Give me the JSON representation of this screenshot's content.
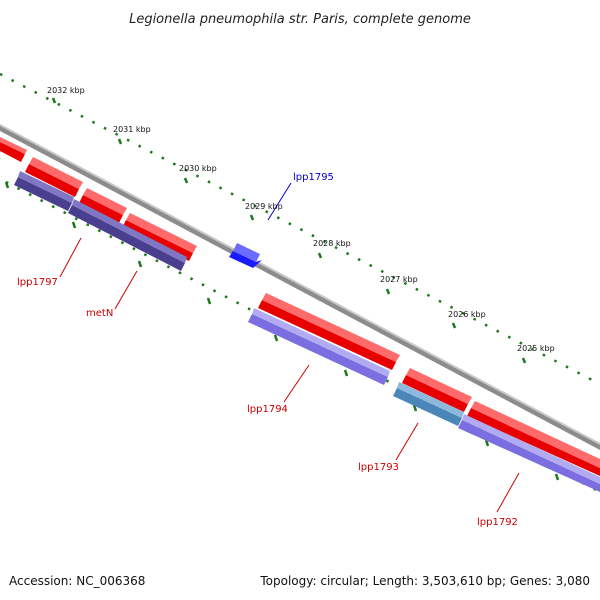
{
  "title": "Legionella pneumophila str. Paris, complete genome",
  "accession": "Accession: NC_006368",
  "summary": "Topology: circular; Length: 3,503,610 bp; Genes: 3,080",
  "colors": {
    "backbone": "#8c8c8c",
    "forward_cds": "#ff1a1a",
    "reverse_cds": "#7a6ee0",
    "reverse_cds_dark": "#4a3f8f",
    "reverse_cds_teal": "#4a86b8",
    "highlight": "#1a1aff",
    "tick": "#1a7a1a",
    "label_red": "#cc0000",
    "label_blue": "#0000cc"
  },
  "ticks": [
    {
      "label": "2032 kbp"
    },
    {
      "label": "2031 kbp"
    },
    {
      "label": "2030 kbp"
    },
    {
      "label": "2029 kbp"
    },
    {
      "label": "2028 kbp"
    },
    {
      "label": "2027 kbp"
    },
    {
      "label": "2026 kbp"
    },
    {
      "label": "2025 kbp"
    }
  ],
  "gene_labels": [
    {
      "name": "lpp1795",
      "color_key": "label_blue"
    },
    {
      "name": "lpp1797",
      "color_key": "label_red"
    },
    {
      "name": "metN",
      "color_key": "label_red"
    },
    {
      "name": "lpp1794",
      "color_key": "label_red"
    },
    {
      "name": "lpp1793",
      "color_key": "label_red"
    },
    {
      "name": "lpp1792",
      "color_key": "label_red"
    }
  ]
}
